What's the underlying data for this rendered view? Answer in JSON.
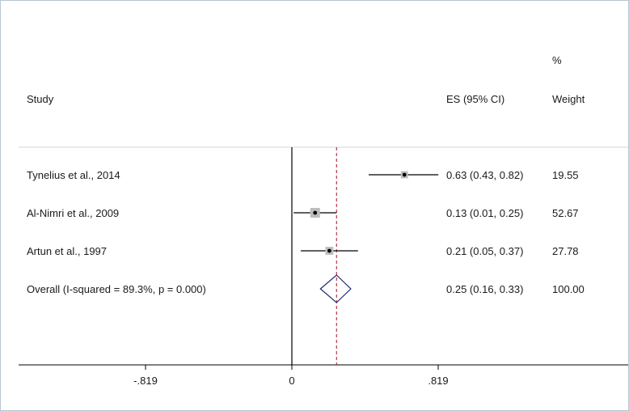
{
  "chart_data": {
    "type": "forest",
    "columns": {
      "study": "Study",
      "es": "ES (95% CI)",
      "weight_line1": "%",
      "weight_line2": "Weight"
    },
    "studies": [
      {
        "label": "Tynelius et al., 2014",
        "es": 0.63,
        "lo": 0.43,
        "hi": 0.82,
        "es_text": "0.63 (0.43, 0.82)",
        "weight": 19.55,
        "weight_text": "19.55"
      },
      {
        "label": "Al-Nimri et al., 2009",
        "es": 0.13,
        "lo": 0.01,
        "hi": 0.25,
        "es_text": "0.13 (0.01, 0.25)",
        "weight": 52.67,
        "weight_text": "52.67"
      },
      {
        "label": "Artun et al., 1997",
        "es": 0.21,
        "lo": 0.05,
        "hi": 0.37,
        "es_text": "0.21 (0.05, 0.37)",
        "weight": 27.78,
        "weight_text": "27.78"
      }
    ],
    "overall": {
      "label": "Overall  (I-squared = 89.3%, p = 0.000)",
      "es": 0.25,
      "lo": 0.16,
      "hi": 0.33,
      "es_text": "0.25 (0.16, 0.33)",
      "weight_text": "100.00"
    },
    "x_ticks": [
      {
        "value": -0.819,
        "label": "-.819"
      },
      {
        "value": 0,
        "label": "0"
      },
      {
        "value": 0.819,
        "label": ".819"
      }
    ],
    "null_line": 0,
    "xlim": [
      -1.13,
      1.13
    ],
    "colors": {
      "axis": "#000000",
      "ci_line": "#000000",
      "weight_box": "#bdbdbd",
      "overall_diamond": "#1f2a6b",
      "overall_line": "#a0102a",
      "grid": "#d4d4d4"
    }
  }
}
